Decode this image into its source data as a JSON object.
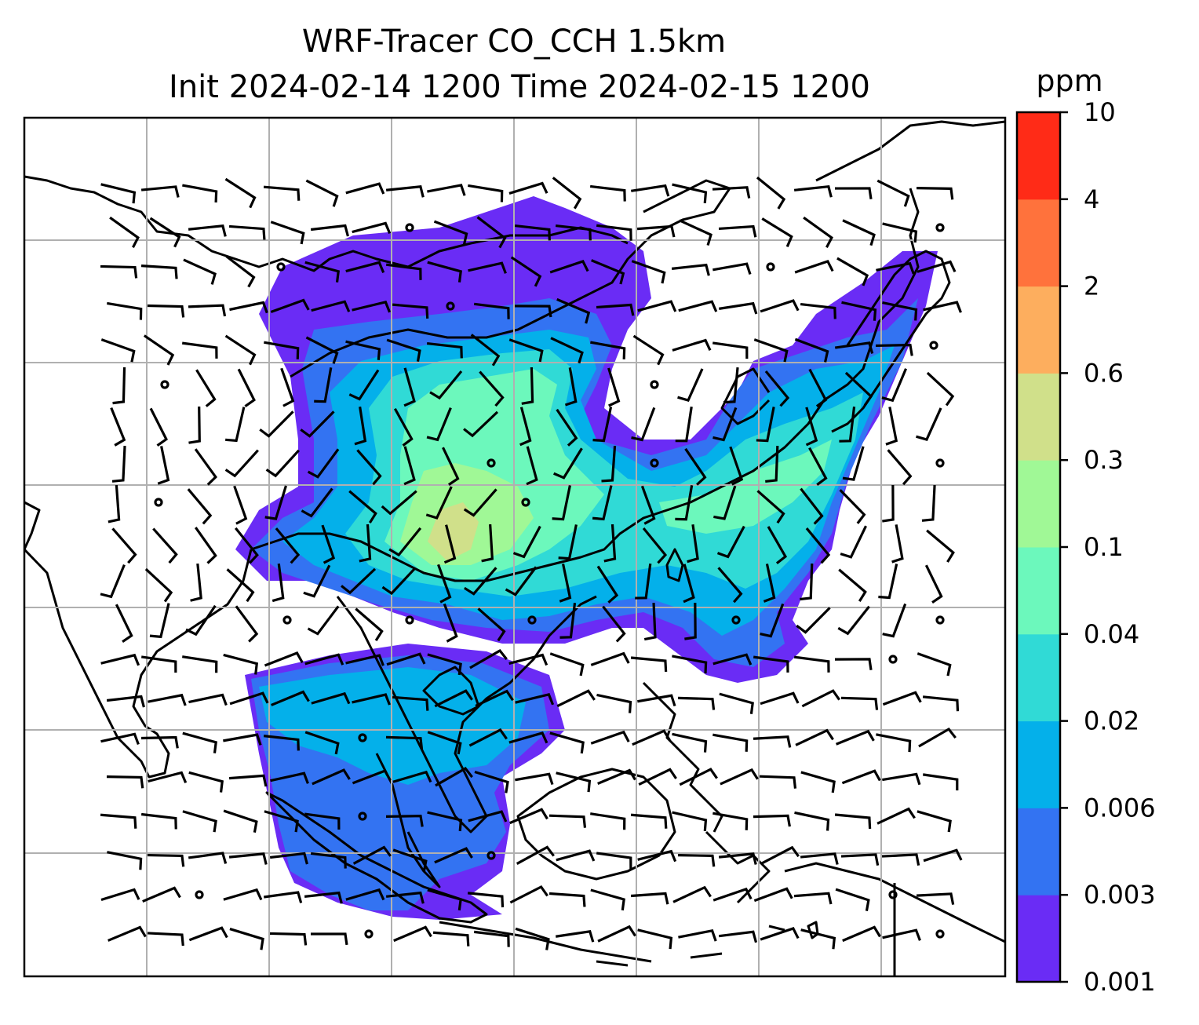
{
  "title": {
    "line1": "WRF-Tracer CO_CCH 1.5km",
    "line2": "Init 2024-02-14 1200 Time 2024-02-15 1200"
  },
  "colorbar": {
    "units": "ppm",
    "levels": [
      "0.001",
      "0.003",
      "0.006",
      "0.02",
      "0.04",
      "0.1",
      "0.3",
      "0.6",
      "2",
      "4",
      "10"
    ],
    "colors": [
      "#6a2cf5",
      "#3373f2",
      "#04b0ea",
      "#30dad6",
      "#6cf8bc",
      "#a0f896",
      "#d0e08a",
      "#fdae5e",
      "#ff723c",
      "#ff2b17"
    ]
  },
  "map": {
    "gridlines": true,
    "plume_colors": {
      "c1": "#6a2cf5",
      "c2": "#3373f2",
      "c3": "#04b0ea",
      "c4": "#30dad6",
      "c5": "#6cf8bc",
      "c6": "#a0f896",
      "c7": "#d0e08a"
    },
    "frame_color": "#000000",
    "grid_color": "#b0b0b0"
  }
}
